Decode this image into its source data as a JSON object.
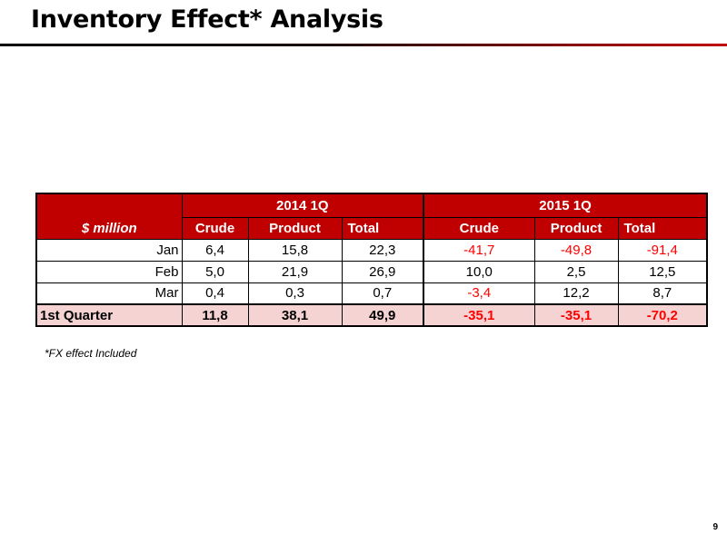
{
  "title": "Inventory Effect* Analysis",
  "table": {
    "unit_label": "$ million",
    "groups": [
      "2014 1Q",
      "2015 1Q"
    ],
    "columns": [
      "Crude",
      "Product",
      "Total",
      "Crude",
      "Product",
      "Total"
    ],
    "rows": [
      {
        "label": "Jan",
        "values": [
          "6,4",
          "15,8",
          "22,3",
          "-41,7",
          "-49,8",
          "-91,4"
        ]
      },
      {
        "label": "Feb",
        "values": [
          "5,0",
          "21,9",
          "26,9",
          "10,0",
          "2,5",
          "12,5"
        ]
      },
      {
        "label": "Mar",
        "values": [
          "0,4",
          "0,3",
          "0,7",
          "-3,4",
          "12,2",
          "8,7"
        ]
      }
    ],
    "total": {
      "label": "1st Quarter",
      "values": [
        "11,8",
        "38,1",
        "49,9",
        "-35,1",
        "-35,1",
        "-70,2"
      ]
    }
  },
  "footnote": "*FX effect Included",
  "page_number": "9",
  "colors": {
    "header_bg": "#c00000",
    "header_text": "#ffffff",
    "negative_text": "#ff0000",
    "total_row_bg": "#f6d3d3"
  }
}
